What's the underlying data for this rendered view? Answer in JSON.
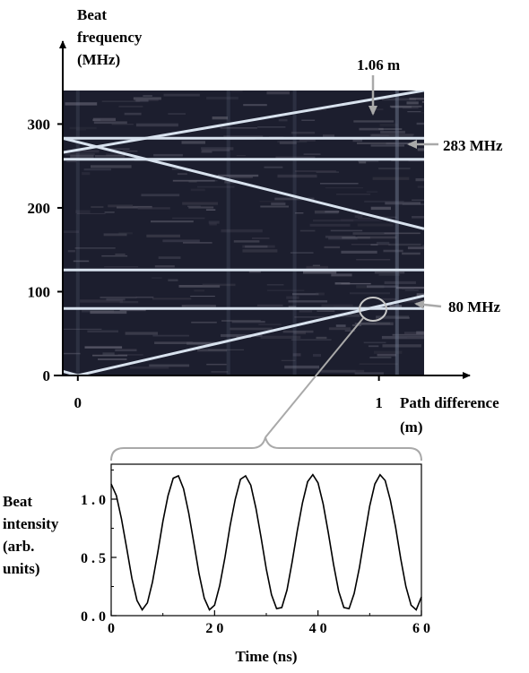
{
  "chart_data": [
    {
      "type": "heatmap",
      "title": "",
      "ylabel_lines": [
        "Beat",
        "frequency",
        "(MHz)"
      ],
      "xlabel_lines": [
        "Path difference",
        "(m)"
      ],
      "ylim": [
        0,
        340
      ],
      "xlim": [
        -0.05,
        1.15
      ],
      "y_ticks": [
        0,
        100,
        200,
        300
      ],
      "y_tick_labels": [
        "0",
        "100",
        "200",
        "300"
      ],
      "x_ticks": [
        0,
        1
      ],
      "x_tick_labels": [
        "0",
        "1"
      ],
      "grid": false,
      "background": "#1c1e2e",
      "line_color": "#d8e2ee",
      "lines": [
        {
          "x": [
            -0.05,
            1.15
          ],
          "y": [
            266,
            340
          ]
        },
        {
          "x": [
            -0.05,
            1.15
          ],
          "y": [
            283,
            283
          ]
        },
        {
          "x": [
            -0.05,
            1.15
          ],
          "y": [
            283,
            175
          ]
        },
        {
          "x": [
            -0.05,
            1.15
          ],
          "y": [
            258,
            258
          ]
        },
        {
          "x": [
            -0.05,
            1.15
          ],
          "y": [
            126,
            126
          ]
        },
        {
          "x": [
            -0.05,
            1.15
          ],
          "y": [
            80,
            80
          ]
        },
        {
          "x": [
            0,
            1.15
          ],
          "y": [
            0,
            95
          ]
        },
        {
          "x": [
            -0.05,
            0
          ],
          "y": [
            5,
            0
          ]
        }
      ],
      "vertical_streak": {
        "x": 1.06
      },
      "annotations": [
        {
          "text": "1.06 m",
          "x": 1.06,
          "y": 340
        },
        {
          "text": "283 MHz",
          "x": 1.15,
          "y": 283
        },
        {
          "text": "80 MHz",
          "x": 1.15,
          "y": 80
        }
      ],
      "zoom_circle": {
        "x": 1.0,
        "y": 80
      }
    },
    {
      "type": "line",
      "title": "",
      "ylabel_lines": [
        "Beat",
        "intensity",
        "(arb.",
        "units)"
      ],
      "xlabel": "Time (ns)",
      "xlim": [
        0,
        60
      ],
      "ylim": [
        0,
        1.3
      ],
      "x_ticks": [
        0,
        20,
        40,
        60
      ],
      "x_tick_labels": [
        "0",
        "2 0",
        "4 0",
        "6 0"
      ],
      "y_ticks": [
        0,
        0.5,
        1.0
      ],
      "y_tick_labels": [
        "0 . 0",
        "0 . 5",
        "1 . 0"
      ],
      "grid": false,
      "series": [
        {
          "x": [
            0,
            1,
            2,
            3,
            4,
            5,
            6,
            7,
            8,
            9,
            10,
            11,
            12,
            13,
            14,
            15,
            16,
            17,
            18,
            19,
            20,
            21,
            22,
            23,
            24,
            25,
            26,
            27,
            28,
            29,
            30,
            31,
            32,
            33,
            34,
            35,
            36,
            37,
            38,
            39,
            40,
            41,
            42,
            43,
            44,
            45,
            46,
            47,
            48,
            49,
            50,
            51,
            52,
            53,
            54,
            55,
            56,
            57,
            58,
            59,
            60
          ],
          "y": [
            1.13,
            1.03,
            0.83,
            0.58,
            0.32,
            0.13,
            0.05,
            0.11,
            0.29,
            0.54,
            0.81,
            1.03,
            1.18,
            1.2,
            1.09,
            0.88,
            0.62,
            0.36,
            0.15,
            0.05,
            0.09,
            0.26,
            0.5,
            0.77,
            1,
            1.17,
            1.2,
            1.12,
            0.92,
            0.67,
            0.4,
            0.18,
            0.06,
            0.07,
            0.22,
            0.46,
            0.73,
            0.97,
            1.15,
            1.21,
            1.14,
            0.96,
            0.71,
            0.44,
            0.21,
            0.07,
            0.06,
            0.19,
            0.41,
            0.68,
            0.94,
            1.13,
            1.21,
            1.16,
            0.99,
            0.76,
            0.49,
            0.25,
            0.09,
            0.05,
            0.16
          ]
        }
      ]
    }
  ]
}
